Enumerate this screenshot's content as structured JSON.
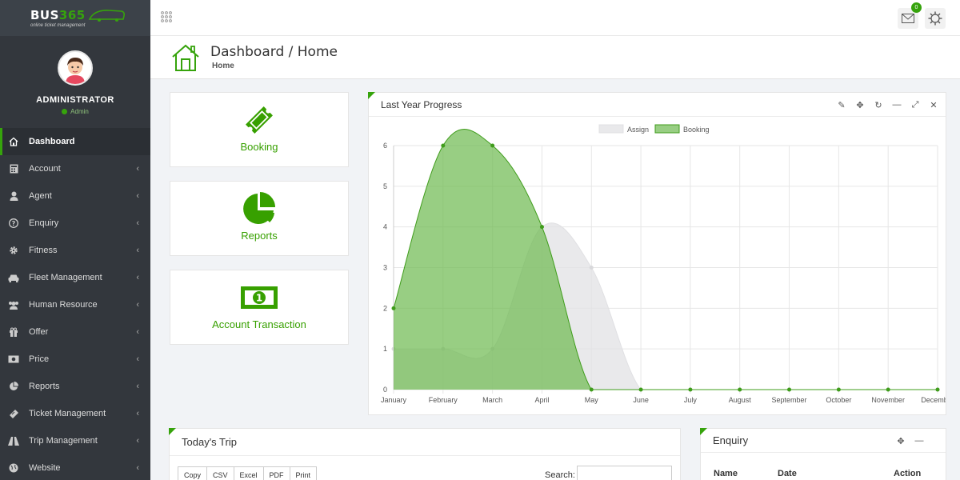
{
  "app": {
    "logo_main": "BUS",
    "logo_num": "365",
    "logo_tagline": "online ticket management"
  },
  "profile": {
    "name": "ADMINISTRATOR",
    "role": "Admin"
  },
  "menu": [
    {
      "label": "Dashboard",
      "icon": "home-icon",
      "active": true
    },
    {
      "label": "Account",
      "icon": "calculator-icon"
    },
    {
      "label": "Agent",
      "icon": "user-icon"
    },
    {
      "label": "Enquiry",
      "icon": "question-icon"
    },
    {
      "label": "Fitness",
      "icon": "gear-icon"
    },
    {
      "label": "Fleet Management",
      "icon": "car-icon"
    },
    {
      "label": "Human Resource",
      "icon": "users-icon"
    },
    {
      "label": "Offer",
      "icon": "gift-icon"
    },
    {
      "label": "Price",
      "icon": "money-icon"
    },
    {
      "label": "Reports",
      "icon": "pie-chart-icon"
    },
    {
      "label": "Ticket Management",
      "icon": "ticket-icon"
    },
    {
      "label": "Trip Management",
      "icon": "road-icon"
    },
    {
      "label": "Website",
      "icon": "globe-icon"
    }
  ],
  "topbar": {
    "mail_count": "0"
  },
  "page_header": {
    "title": "Dashboard / Home",
    "subtitle": "Home"
  },
  "tiles": [
    {
      "label": "Booking",
      "icon": "ticket-icon"
    },
    {
      "label": "Reports",
      "icon": "pie-chart-icon"
    },
    {
      "label": "Account Transaction",
      "icon": "money-icon"
    }
  ],
  "chart_panel": {
    "title": "Last Year Progress"
  },
  "chart_data": {
    "type": "area",
    "categories": [
      "January",
      "February",
      "March",
      "April",
      "May",
      "June",
      "July",
      "August",
      "September",
      "October",
      "November",
      "December"
    ],
    "series": [
      {
        "name": "Assign",
        "values": [
          1,
          1,
          1,
          4,
          3,
          0,
          0,
          0,
          0,
          0,
          0,
          0
        ],
        "color": "#e8e8ea"
      },
      {
        "name": "Booking",
        "values": [
          2,
          6,
          6,
          4,
          0,
          0,
          0,
          0,
          0,
          0,
          0,
          0
        ],
        "color": "#7fc466"
      }
    ],
    "ylim": [
      0,
      6
    ],
    "yticks": [
      "0",
      "1",
      "2",
      "3",
      "4",
      "5",
      "6"
    ],
    "legend": "top",
    "grid": true
  },
  "trip_panel": {
    "title": "Today's Trip",
    "buttons": [
      "Copy",
      "CSV",
      "Excel",
      "PDF",
      "Print"
    ],
    "search_label": "Search:"
  },
  "enquiry_panel": {
    "title": "Enquiry",
    "columns": [
      "Name",
      "Date",
      "Action"
    ]
  },
  "colors": {
    "accent": "#36a30c",
    "sidebar": "#33373d"
  }
}
